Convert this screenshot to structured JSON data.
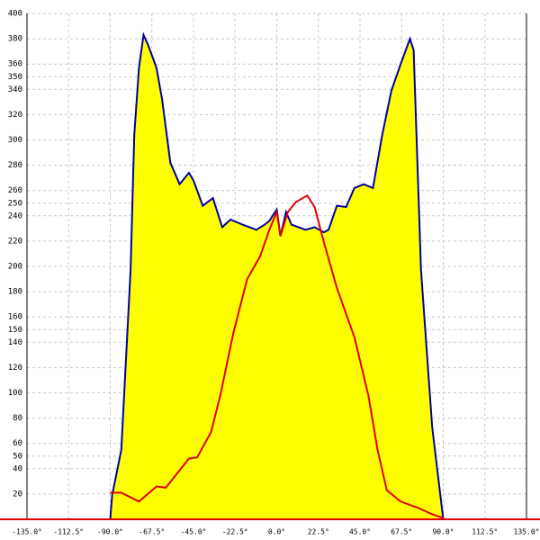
{
  "chart_data": {
    "type": "area",
    "xlim": [
      -135,
      135
    ],
    "ylim": [
      0,
      400
    ],
    "xticks": [
      {
        "value": -135,
        "label": "-135.0°"
      },
      {
        "value": -112.5,
        "label": "-112.5°"
      },
      {
        "value": -90,
        "label": "-90.0°"
      },
      {
        "value": -67.5,
        "label": "-67.5°"
      },
      {
        "value": -45,
        "label": "-45.0°"
      },
      {
        "value": -22.5,
        "label": "-22.5°"
      },
      {
        "value": 0,
        "label": "0.0°"
      },
      {
        "value": 22.5,
        "label": "22.5°"
      },
      {
        "value": 45,
        "label": "45.0°"
      },
      {
        "value": 67.5,
        "label": "67.5°"
      },
      {
        "value": 90,
        "label": "90.0°"
      },
      {
        "value": 112.5,
        "label": "112.5°"
      },
      {
        "value": 135,
        "label": "135.0°"
      }
    ],
    "yticks": [
      20,
      40,
      50,
      60,
      80,
      100,
      120,
      140,
      150,
      160,
      180,
      200,
      220,
      240,
      250,
      260,
      280,
      300,
      320,
      340,
      350,
      360,
      380,
      400
    ],
    "grid": true,
    "series": [
      {
        "color": "#0000a0",
        "fill": "#ffff00",
        "x": [
          -90,
          -89,
          -84,
          -79,
          -77,
          -74.5,
          -72,
          -69.5,
          -65,
          -62,
          -57.5,
          -52.5,
          -47.5,
          -45,
          -40,
          -34.5,
          -29.5,
          -25,
          -18.5,
          -11,
          -6.5,
          -4,
          0,
          2,
          5,
          8,
          15.5,
          20.5,
          25.5,
          28,
          32.5,
          37.5,
          42,
          47,
          52,
          57,
          62,
          67,
          72,
          74,
          78,
          84,
          90
        ],
        "values": [
          0,
          19,
          55,
          197,
          304,
          357,
          383,
          375,
          357,
          332,
          282,
          265,
          274,
          268,
          248,
          254,
          231,
          237,
          233,
          229,
          233,
          236,
          245,
          224,
          243,
          233,
          229,
          231,
          227,
          229,
          248,
          247,
          262,
          265,
          262,
          304,
          339,
          360,
          380,
          371,
          197,
          73,
          0
        ]
      },
      {
        "color": "#e00000",
        "x": [
          -90,
          -84,
          -74.5,
          -65,
          -60,
          -47.5,
          -43,
          -35.5,
          -30.5,
          -23.5,
          -16,
          -9,
          -4,
          0,
          2,
          6,
          10.5,
          16.5,
          20.5,
          25.5,
          32.5,
          42,
          49.5,
          54.5,
          59.5,
          67,
          76.5,
          84,
          90
        ],
        "values": [
          21,
          21,
          14,
          26,
          25,
          48,
          49,
          69,
          98,
          147,
          190,
          208,
          229,
          243,
          224,
          243,
          251,
          256,
          247,
          219,
          183,
          144,
          98,
          55,
          23,
          14,
          9,
          4,
          1
        ]
      }
    ]
  }
}
